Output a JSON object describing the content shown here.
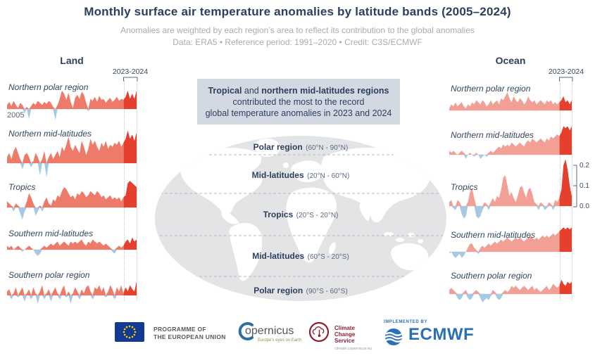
{
  "header": {
    "title": "Monthly surface air temperature anomalies by latitude bands (2005–2024)",
    "subtitle1": "Anomalies are weighted by each region’s area to reflect its contribution to the global anomalies",
    "subtitle2": "Data: ERA5 • Reference period: 1991–2020 • Credit: C3S/ECMWF"
  },
  "columns": {
    "left_title": "Land",
    "right_title": "Ocean",
    "highlight_label_left": "2023-2024",
    "highlight_label_right": "2023-2024",
    "start_year_label": "2005"
  },
  "annotation": {
    "bold1": "Tropical",
    "mid": " and ",
    "bold2": "northern mid-latitudes regions",
    "line2": "contributed the most to the record",
    "line3": "global temperature anomalies in 2023 and 2024"
  },
  "map_bands": [
    {
      "name": "Polar region",
      "range": "(60°N - 90°N)"
    },
    {
      "name": "Mid-latitudes",
      "range": "(20°N - 60°N)"
    },
    {
      "name": "Tropics",
      "range": "(20°S - 20°N)"
    },
    {
      "name": "Mid-latitudes",
      "range": "(60°S - 20°S)"
    },
    {
      "name": "Polar region",
      "range": "(90°S - 60°S)"
    }
  ],
  "axis": {
    "ticks": [
      "0.2",
      "0.1",
      "0.0"
    ]
  },
  "chart_data": {
    "type": "area",
    "title": "Monthly surface air temperature anomalies by latitude bands (2005–2024)",
    "x_range": [
      2005,
      2025
    ],
    "x_unit": "monthly",
    "y_unit": "°C, area-weighted contribution to global anomaly",
    "y_axis_ticks": [
      0.2,
      0.1,
      0.0
    ],
    "highlight_period": "2023-2024",
    "highlight_fraction": 0.9,
    "grid": false,
    "legend": "none",
    "land": {
      "title": "Land",
      "series": [
        {
          "name": "Northern polar region",
          "values": [
            0.02,
            0.035,
            0.015,
            0.04,
            0.02,
            0.005,
            0.03,
            0.02,
            -0.02,
            0.01,
            -0.05,
            0.015,
            0.03,
            0.02,
            0.04,
            0.03,
            0.02,
            0.035,
            0.025,
            0.04,
            0.03,
            0.01,
            -0.055,
            0.02,
            0.05,
            0.09,
            0.075,
            0.045,
            0.08,
            0.035,
            0.005,
            0.055,
            0.07,
            0.05,
            0.085,
            0.07,
            0.03,
            -0.01,
            0.05,
            0.04,
            0.06,
            0.035,
            0.065,
            0.045,
            0.05,
            0.03,
            0.045,
            0.055,
            0.035,
            0.045,
            0.06,
            0.04,
            0.05,
            0.045,
            0.06,
            0.09,
            0.05,
            0.075,
            0.05,
            0.09
          ]
        },
        {
          "name": "Northern mid-latitudes",
          "values": [
            0.03,
            0.05,
            0.02,
            0.06,
            0.08,
            0.05,
            0.02,
            -0.03,
            0.04,
            0.05,
            0.03,
            -0.02,
            0.01,
            0.05,
            0.03,
            -0.06,
            0.02,
            0.06,
            -0.07,
            0.03,
            0.05,
            0.02,
            0.04,
            0.06,
            0.03,
            0.08,
            0.06,
            0.09,
            0.13,
            0.08,
            0.06,
            0.09,
            0.07,
            0.05,
            0.11,
            0.08,
            0.04,
            0.07,
            0.12,
            0.09,
            0.11,
            0.08,
            0.06,
            0.1,
            0.08,
            0.11,
            0.07,
            0.09,
            0.08,
            0.1,
            0.09,
            0.11,
            0.08,
            0.1,
            0.12,
            0.16,
            0.12,
            0.14,
            0.11,
            0.15
          ]
        },
        {
          "name": "Tropics",
          "values": [
            0.03,
            0.02,
            0.01,
            -0.02,
            0.02,
            0.01,
            -0.03,
            -0.06,
            -0.02,
            0.03,
            0.07,
            0.05,
            0.02,
            -0.04,
            -0.02,
            0.01,
            -0.02,
            0.03,
            0.05,
            0.02,
            0.01,
            0.04,
            0.03,
            0.06,
            0.05,
            0.08,
            0.1,
            0.09,
            0.07,
            0.05,
            0.06,
            0.04,
            0.07,
            0.06,
            0.08,
            0.07,
            0.05,
            0.06,
            0.08,
            0.07,
            0.06,
            0.08,
            0.07,
            0.05,
            0.06,
            0.04,
            0.05,
            0.06,
            0.04,
            0.05,
            0.04,
            0.05,
            0.03,
            0.05,
            0.06,
            0.12,
            0.13,
            0.12,
            0.11,
            0.1
          ]
        },
        {
          "name": "Southern mid-latitudes",
          "values": [
            0.02,
            0.01,
            0.02,
            0.0,
            0.01,
            0.02,
            0.01,
            -0.01,
            0.0,
            0.01,
            0.02,
            0.01,
            0.0,
            -0.02,
            -0.03,
            -0.02,
            0.01,
            0.02,
            0.01,
            0.02,
            0.03,
            0.02,
            0.03,
            0.04,
            0.02,
            0.03,
            0.04,
            0.03,
            0.02,
            0.04,
            0.03,
            0.04,
            0.03,
            0.04,
            0.05,
            0.03,
            0.02,
            0.04,
            0.03,
            0.05,
            0.04,
            0.03,
            0.04,
            0.03,
            0.02,
            0.03,
            0.02,
            0.01,
            -0.01,
            -0.02,
            0.01,
            0.02,
            0.01,
            0.02,
            0.04,
            0.05,
            0.03,
            0.06,
            0.04,
            0.05
          ]
        },
        {
          "name": "Southern polar region",
          "values": [
            0.02,
            0.03,
            -0.02,
            0.01,
            0.04,
            -0.01,
            0.02,
            0.04,
            -0.03,
            0.01,
            0.03,
            -0.02,
            0.04,
            0.01,
            -0.04,
            0.02,
            0.05,
            -0.02,
            0.01,
            0.03,
            -0.03,
            0.02,
            0.04,
            0.01,
            -0.02,
            0.03,
            0.05,
            -0.01,
            0.02,
            -0.04,
            0.01,
            0.04,
            0.02,
            -0.02,
            0.03,
            0.01,
            0.04,
            0.05,
            0.02,
            -0.02,
            0.04,
            0.03,
            0.05,
            0.02,
            0.04,
            -0.01,
            0.02,
            0.05,
            0.03,
            -0.02,
            0.04,
            0.02,
            0.05,
            0.01,
            0.04,
            0.02,
            0.05,
            0.03,
            0.02,
            0.07
          ]
        }
      ]
    },
    "ocean": {
      "title": "Ocean",
      "series": [
        {
          "name": "Northern polar region",
          "values": [
            0.01,
            0.03,
            0.02,
            0.04,
            0.02,
            0.03,
            0.04,
            0.02,
            0.01,
            0.03,
            0.02,
            0.04,
            0.03,
            0.05,
            0.04,
            0.03,
            0.05,
            0.04,
            0.02,
            0.03,
            0.05,
            0.03,
            0.04,
            0.05,
            0.03,
            0.06,
            0.05,
            0.07,
            0.09,
            0.06,
            0.04,
            0.07,
            0.05,
            0.04,
            0.06,
            0.05,
            0.03,
            0.04,
            0.07,
            0.05,
            0.04,
            0.05,
            0.03,
            0.04,
            0.05,
            0.04,
            0.03,
            0.05,
            0.04,
            0.05,
            0.03,
            0.04,
            0.03,
            0.04,
            0.05,
            0.07,
            0.04,
            0.05,
            0.03,
            0.05
          ]
        },
        {
          "name": "Northern mid-latitudes",
          "values": [
            0.02,
            0.01,
            0.02,
            0.01,
            0.0,
            0.01,
            0.02,
            0.01,
            -0.02,
            0.0,
            0.01,
            0.0,
            -0.01,
            0.01,
            0.0,
            -0.02,
            -0.01,
            0.0,
            -0.01,
            0.01,
            0.02,
            0.01,
            0.02,
            0.03,
            0.04,
            0.03,
            0.05,
            0.04,
            0.05,
            0.04,
            0.06,
            0.05,
            0.04,
            0.05,
            0.06,
            0.05,
            0.04,
            0.06,
            0.07,
            0.06,
            0.08,
            0.07,
            0.06,
            0.07,
            0.08,
            0.07,
            0.06,
            0.08,
            0.07,
            0.09,
            0.08,
            0.09,
            0.1,
            0.09,
            0.11,
            0.14,
            0.13,
            0.14,
            0.12,
            0.14
          ]
        },
        {
          "name": "Tropics",
          "values": [
            0.02,
            0.03,
            -0.01,
            -0.02,
            0.03,
            0.02,
            -0.04,
            -0.06,
            -0.05,
            0.02,
            0.07,
            0.09,
            0.04,
            -0.05,
            -0.06,
            -0.05,
            -0.02,
            0.02,
            0.01,
            -0.02,
            0.02,
            0.04,
            0.02,
            0.05,
            0.04,
            0.08,
            0.14,
            0.15,
            0.1,
            0.05,
            0.07,
            0.04,
            0.02,
            0.05,
            0.09,
            0.1,
            0.07,
            0.04,
            0.08,
            0.09,
            0.06,
            0.02,
            0.01,
            -0.02,
            0.02,
            0.01,
            -0.02,
            -0.01,
            0.02,
            0.01,
            -0.02,
            0.03,
            0.02,
            0.04,
            0.08,
            0.2,
            0.23,
            0.18,
            0.1,
            0.05
          ]
        },
        {
          "name": "Southern mid-latitudes",
          "values": [
            -0.01,
            0.0,
            -0.02,
            -0.03,
            -0.02,
            -0.01,
            -0.03,
            -0.02,
            0.0,
            0.02,
            0.04,
            0.04,
            0.02,
            0.01,
            -0.01,
            0.02,
            0.03,
            0.02,
            0.03,
            0.04,
            0.03,
            0.04,
            0.05,
            0.04,
            0.05,
            0.06,
            0.05,
            0.06,
            0.07,
            0.06,
            0.05,
            0.06,
            0.07,
            0.06,
            0.07,
            0.06,
            0.05,
            0.06,
            0.07,
            0.08,
            0.07,
            0.06,
            0.07,
            0.06,
            0.07,
            0.08,
            0.07,
            0.08,
            0.07,
            0.08,
            0.09,
            0.08,
            0.09,
            0.1,
            0.11,
            0.12,
            0.11,
            0.12,
            0.11,
            0.12
          ]
        },
        {
          "name": "Southern polar region",
          "values": [
            0.02,
            0.03,
            0.02,
            0.01,
            -0.02,
            -0.03,
            -0.02,
            0.01,
            0.02,
            -0.02,
            -0.03,
            -0.02,
            0.01,
            0.02,
            0.01,
            -0.02,
            -0.04,
            -0.03,
            -0.02,
            -0.03,
            -0.01,
            0.02,
            0.01,
            -0.02,
            -0.03,
            -0.02,
            0.01,
            0.02,
            0.01,
            0.02,
            0.04,
            0.03,
            0.04,
            0.03,
            0.02,
            0.03,
            0.04,
            0.03,
            0.02,
            0.03,
            0.04,
            0.02,
            0.03,
            0.02,
            0.01,
            0.02,
            0.03,
            0.04,
            0.02,
            0.03,
            0.05,
            0.04,
            0.03,
            0.04,
            0.07,
            0.05,
            0.04,
            0.06,
            0.05,
            0.06
          ]
        }
      ]
    }
  },
  "colors": {
    "land_fill": "#ee7b69",
    "ocean_fill": "#f2a096",
    "highlight_fill": "#e5402e",
    "negative_fill": "#a5c9e2",
    "baseline": "#e0c4bc",
    "title_navy": "#2d3f5e",
    "map_ocean": "#e3e4e6",
    "map_land": "#ffffff",
    "eu_blue": "#123a93",
    "ecmwf_blue": "#2b6fb6",
    "c3s_red": "#8e2136"
  },
  "footer": {
    "eu_line1": "PROGRAMME OF",
    "eu_line2": "THE EUROPEAN UNION",
    "copernicus_wordmark": "opernicus",
    "copernicus_tagline": "Europe's eyes on Earth",
    "c3s_line1": "Climate",
    "c3s_line2": "Change Service",
    "c3s_url": "climate.copernicus.eu",
    "implemented_by": "IMPLEMENTED BY",
    "ecmwf": "ECMWF"
  }
}
